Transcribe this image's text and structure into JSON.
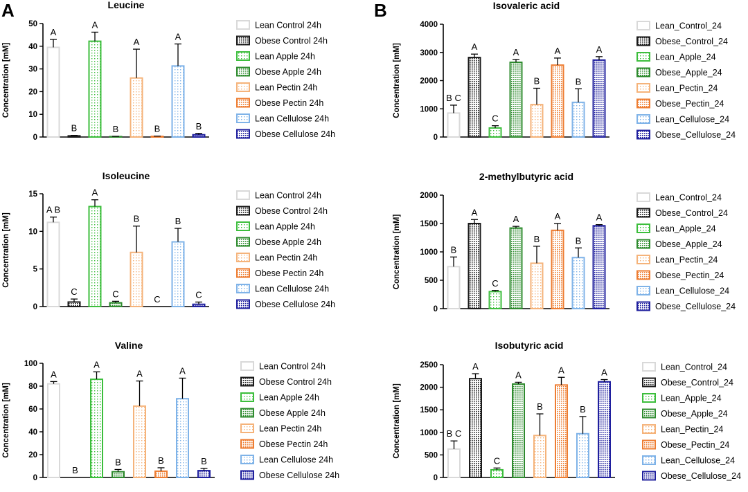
{
  "panel_labels": [
    "A",
    "B"
  ],
  "colors": {
    "lean_control": "#d9d9d9",
    "obese_control": "#1a1a1a",
    "lean_apple": "#3cbe3c",
    "obese_apple": "#2e8b2e",
    "lean_pectin": "#f5b37a",
    "obese_pectin": "#ee7d32",
    "lean_cellulose": "#7fb3e8",
    "obese_cellulose": "#1f1f9e"
  },
  "chart_data": [
    {
      "type": "bar",
      "title": "Leucine",
      "ylabel": "Concentration [mM]",
      "ylim": [
        0,
        50
      ],
      "yticks": [
        0,
        10,
        20,
        30,
        40,
        50
      ],
      "legend_position": "right",
      "categories": [
        "Lean Control 24h",
        "Obese Control  24h",
        "Lean Apple  24h",
        "Obese Apple  24h",
        "Lean Pectin  24h",
        "Obese Pectin  24h",
        "Lean Cellulose 24h",
        "Obese Cellulose  24h"
      ],
      "values": [
        39.5,
        0.5,
        42.2,
        0.2,
        26,
        0.3,
        31.3,
        1
      ],
      "errors": [
        3.5,
        0.2,
        4,
        0.1,
        12.7,
        0.1,
        9.7,
        0.6
      ],
      "letters": [
        "A",
        "B",
        "A",
        "B",
        "A",
        "B",
        "A",
        "B"
      ]
    },
    {
      "type": "bar",
      "title": "Isoleucine",
      "ylabel": "Concentration [mM]",
      "ylim": [
        0,
        15
      ],
      "yticks": [
        0,
        5,
        10,
        15
      ],
      "legend_position": "right",
      "categories": [
        "Lean Control 24h",
        "Obese Control 24h",
        "Lean Apple  24h",
        "Obese Apple  24h",
        "Lean Pectin  24h",
        "Obese Pectin  24h",
        "Lean Cellulose 24h",
        "Obese Cellulose  24h"
      ],
      "values": [
        11.2,
        0.6,
        13.3,
        0.5,
        7.2,
        0,
        8.6,
        0.3
      ],
      "errors": [
        0.7,
        0.4,
        0.9,
        0.2,
        3.5,
        0,
        1.8,
        0.3
      ],
      "letters": [
        "A B",
        "C",
        "A",
        "C",
        "B",
        "C",
        "B",
        "C"
      ]
    },
    {
      "type": "bar",
      "title": "Valine",
      "ylabel": "Concentration [mM]",
      "ylim": [
        0,
        100
      ],
      "yticks": [
        0,
        20,
        40,
        60,
        80,
        100
      ],
      "legend_position": "right",
      "categories": [
        "Lean Control 24h",
        "Obese Control  24h",
        "Lean Apple  24h",
        "Obese Apple  24h",
        "Lean Pectin  24h",
        "Obese Pectin  24h",
        "Lean Cellulose 24h",
        "Obese Cellulose  24h"
      ],
      "values": [
        82,
        0,
        86,
        5,
        62.5,
        5.5,
        69,
        6
      ],
      "errors": [
        2,
        0,
        6.5,
        2,
        22,
        3,
        18,
        2
      ],
      "letters": [
        "A",
        "B",
        "A",
        "B",
        "A",
        "B",
        "A",
        "B"
      ]
    },
    {
      "type": "bar",
      "title": "Isovaleric acid",
      "ylabel": "Concentration [mM]",
      "ylim": [
        0,
        4000
      ],
      "yticks": [
        0,
        1000,
        2000,
        3000,
        4000
      ],
      "legend_position": "right",
      "categories": [
        "Lean_Control_24",
        "Obese_Control_24",
        "Lean_Apple_24",
        "Obese_Apple_24",
        "Lean_Pectin_24",
        "Obese_Pectin_24",
        "Lean_Cellulose_24",
        "Obese_Cellulose_24"
      ],
      "values": [
        850,
        2820,
        320,
        2650,
        1150,
        2550,
        1230,
        2730
      ],
      "errors": [
        280,
        120,
        80,
        100,
        580,
        250,
        480,
        120
      ],
      "letters": [
        "B C",
        "A",
        "C",
        "A",
        "B",
        "A",
        "B",
        "A"
      ]
    },
    {
      "type": "bar",
      "title": "2-methylbutyric acid",
      "ylabel": "Concentration [mM]",
      "ylim": [
        0,
        2000
      ],
      "yticks": [
        0,
        500,
        1000,
        1500,
        2000
      ],
      "legend_position": "right",
      "categories": [
        "Lean_Control_24",
        "Obese_Control_24",
        "Lean_Apple_24",
        "Obese_Apple_24",
        "Lean_Pectin_24",
        "Obese_Pectin_24",
        "Lean_Cellulose_24",
        "Obese_Cellulose_24"
      ],
      "values": [
        740,
        1500,
        300,
        1420,
        800,
        1380,
        900,
        1460
      ],
      "errors": [
        170,
        70,
        20,
        30,
        300,
        120,
        170,
        20
      ],
      "letters": [
        "B",
        "A",
        "C",
        "A",
        "B",
        "A",
        "B",
        "A"
      ]
    },
    {
      "type": "bar",
      "title": "Isobutyric acid",
      "ylabel": "Concentration [mM]",
      "ylim": [
        0,
        2500
      ],
      "yticks": [
        0,
        500,
        1000,
        1500,
        2000,
        2500
      ],
      "legend_position": "right",
      "categories": [
        "Lean_Control_24",
        "Obese_Control_24",
        "Lean_Apple_24",
        "Obese_Apple_24",
        "Lean_Pectin_24",
        "Obese_Pectin_24",
        "Lean_Cellulose_24",
        "Obese_Cellulose_24"
      ],
      "values": [
        630,
        2190,
        170,
        2070,
        930,
        2050,
        970,
        2120
      ],
      "errors": [
        180,
        110,
        40,
        40,
        480,
        170,
        380,
        50
      ],
      "letters": [
        "B C",
        "A",
        "C",
        "A",
        "B",
        "A",
        "B",
        "A"
      ]
    }
  ]
}
